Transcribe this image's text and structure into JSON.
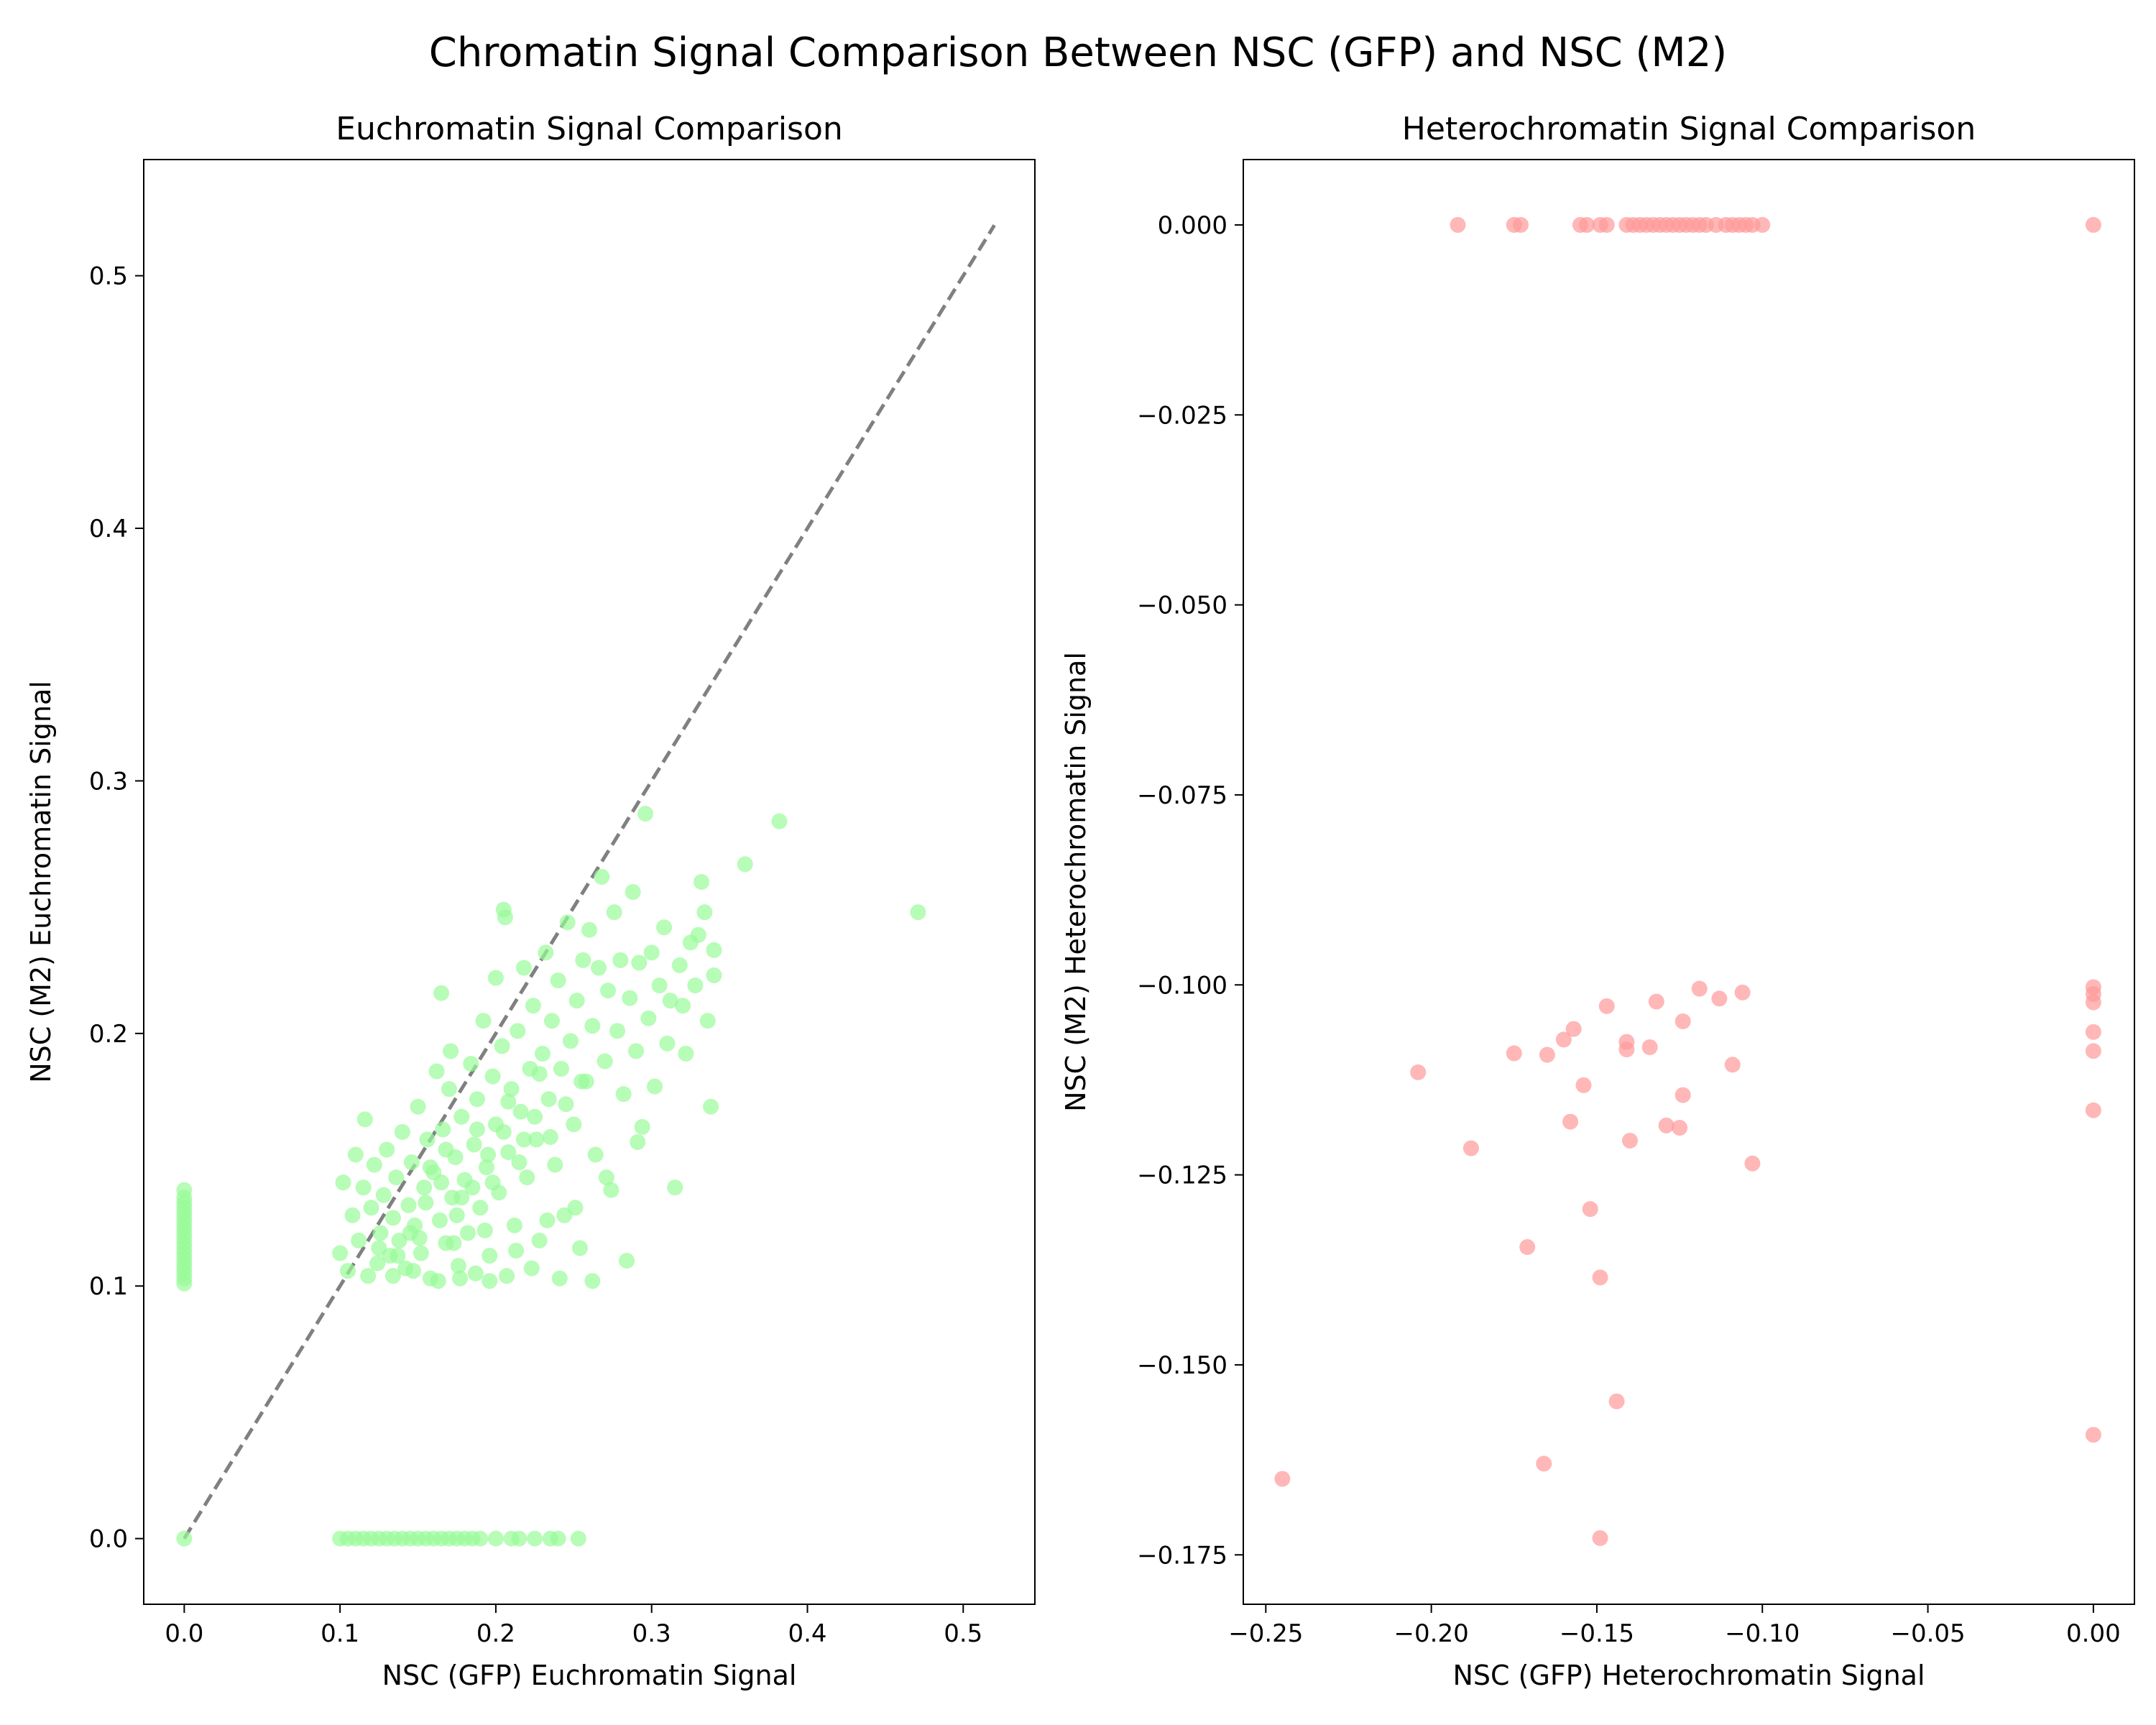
{
  "figure": {
    "suptitle": "Chromatin Signal Comparison Between NSC (GFP) and NSC (M2)"
  },
  "chart_data": [
    {
      "type": "scatter",
      "title": "Euchromatin Signal Comparison",
      "xlabel": "NSC (GFP) Euchromatin Signal",
      "ylabel": "NSC (M2) Euchromatin Signal",
      "xlim": [
        -0.026,
        0.546
      ],
      "ylim": [
        -0.026,
        0.546
      ],
      "xticks": [
        0.0,
        0.1,
        0.2,
        0.3,
        0.4,
        0.5
      ],
      "yticks": [
        0.0,
        0.1,
        0.2,
        0.3,
        0.4,
        0.5
      ],
      "xtick_labels": [
        "0.0",
        "0.1",
        "0.2",
        "0.3",
        "0.4",
        "0.5"
      ],
      "ytick_labels": [
        "0.0",
        "0.1",
        "0.2",
        "0.3",
        "0.4",
        "0.5"
      ],
      "color": "#98fb98",
      "alpha": 0.7,
      "grid": false,
      "reference_line": {
        "x": [
          0,
          0.52
        ],
        "y": [
          0,
          0.52
        ],
        "color": "#808080",
        "style": "dashed"
      },
      "points": [
        [
          0,
          0
        ],
        [
          0,
          0.101
        ],
        [
          0,
          0.103
        ],
        [
          0,
          0.105
        ],
        [
          0,
          0.107
        ],
        [
          0,
          0.109
        ],
        [
          0,
          0.111
        ],
        [
          0,
          0.113
        ],
        [
          0,
          0.115
        ],
        [
          0,
          0.117
        ],
        [
          0,
          0.119
        ],
        [
          0,
          0.121
        ],
        [
          0,
          0.123
        ],
        [
          0,
          0.125
        ],
        [
          0,
          0.127
        ],
        [
          0,
          0.129
        ],
        [
          0,
          0.131
        ],
        [
          0,
          0.133
        ],
        [
          0,
          0.135
        ],
        [
          0,
          0.138
        ],
        [
          0.1,
          0
        ],
        [
          0.105,
          0
        ],
        [
          0.11,
          0
        ],
        [
          0.115,
          0
        ],
        [
          0.12,
          0
        ],
        [
          0.125,
          0
        ],
        [
          0.13,
          0
        ],
        [
          0.135,
          0
        ],
        [
          0.14,
          0
        ],
        [
          0.145,
          0
        ],
        [
          0.15,
          0
        ],
        [
          0.155,
          0
        ],
        [
          0.16,
          0
        ],
        [
          0.165,
          0
        ],
        [
          0.17,
          0
        ],
        [
          0.175,
          0
        ],
        [
          0.18,
          0
        ],
        [
          0.185,
          0
        ],
        [
          0.19,
          0
        ],
        [
          0.2,
          0
        ],
        [
          0.21,
          0
        ],
        [
          0.215,
          0
        ],
        [
          0.225,
          0
        ],
        [
          0.235,
          0
        ],
        [
          0.24,
          0
        ],
        [
          0.253,
          0
        ],
        [
          0.1,
          0.113
        ],
        [
          0.102,
          0.141
        ],
        [
          0.105,
          0.106
        ],
        [
          0.108,
          0.128
        ],
        [
          0.11,
          0.152
        ],
        [
          0.112,
          0.118
        ],
        [
          0.115,
          0.139
        ],
        [
          0.116,
          0.166
        ],
        [
          0.118,
          0.104
        ],
        [
          0.12,
          0.131
        ],
        [
          0.122,
          0.148
        ],
        [
          0.124,
          0.109
        ],
        [
          0.126,
          0.121
        ],
        [
          0.128,
          0.136
        ],
        [
          0.13,
          0.154
        ],
        [
          0.132,
          0.112
        ],
        [
          0.134,
          0.127
        ],
        [
          0.136,
          0.143
        ],
        [
          0.138,
          0.118
        ],
        [
          0.14,
          0.161
        ],
        [
          0.142,
          0.107
        ],
        [
          0.144,
          0.132
        ],
        [
          0.146,
          0.149
        ],
        [
          0.148,
          0.124
        ],
        [
          0.15,
          0.171
        ],
        [
          0.152,
          0.113
        ],
        [
          0.154,
          0.139
        ],
        [
          0.156,
          0.158
        ],
        [
          0.158,
          0.103
        ],
        [
          0.16,
          0.145
        ],
        [
          0.162,
          0.185
        ],
        [
          0.164,
          0.126
        ],
        [
          0.165,
          0.216
        ],
        [
          0.166,
          0.162
        ],
        [
          0.168,
          0.117
        ],
        [
          0.17,
          0.178
        ],
        [
          0.171,
          0.193
        ],
        [
          0.172,
          0.135
        ],
        [
          0.174,
          0.151
        ],
        [
          0.176,
          0.108
        ],
        [
          0.178,
          0.167
        ],
        [
          0.18,
          0.142
        ],
        [
          0.182,
          0.121
        ],
        [
          0.184,
          0.188
        ],
        [
          0.186,
          0.156
        ],
        [
          0.188,
          0.174
        ],
        [
          0.19,
          0.131
        ],
        [
          0.192,
          0.205
        ],
        [
          0.194,
          0.147
        ],
        [
          0.196,
          0.112
        ],
        [
          0.198,
          0.183
        ],
        [
          0.2,
          0.164
        ],
        [
          0.2,
          0.222
        ],
        [
          0.202,
          0.137
        ],
        [
          0.204,
          0.195
        ],
        [
          0.205,
          0.249
        ],
        [
          0.206,
          0.246
        ],
        [
          0.208,
          0.153
        ],
        [
          0.21,
          0.178
        ],
        [
          0.212,
          0.124
        ],
        [
          0.214,
          0.201
        ],
        [
          0.216,
          0.169
        ],
        [
          0.218,
          0.226
        ],
        [
          0.22,
          0.143
        ],
        [
          0.222,
          0.186
        ],
        [
          0.224,
          0.211
        ],
        [
          0.226,
          0.158
        ],
        [
          0.228,
          0.118
        ],
        [
          0.23,
          0.192
        ],
        [
          0.232,
          0.232
        ],
        [
          0.234,
          0.174
        ],
        [
          0.236,
          0.205
        ],
        [
          0.238,
          0.148
        ],
        [
          0.24,
          0.221
        ],
        [
          0.242,
          0.186
        ],
        [
          0.244,
          0.128
        ],
        [
          0.246,
          0.244
        ],
        [
          0.248,
          0.197
        ],
        [
          0.25,
          0.164
        ],
        [
          0.252,
          0.213
        ],
        [
          0.254,
          0.115
        ],
        [
          0.256,
          0.229
        ],
        [
          0.258,
          0.181
        ],
        [
          0.26,
          0.241
        ],
        [
          0.262,
          0.203
        ],
        [
          0.264,
          0.152
        ],
        [
          0.266,
          0.226
        ],
        [
          0.268,
          0.262
        ],
        [
          0.27,
          0.189
        ],
        [
          0.272,
          0.217
        ],
        [
          0.274,
          0.138
        ],
        [
          0.276,
          0.248
        ],
        [
          0.278,
          0.201
        ],
        [
          0.28,
          0.229
        ],
        [
          0.282,
          0.176
        ],
        [
          0.284,
          0.11
        ],
        [
          0.286,
          0.214
        ],
        [
          0.288,
          0.256
        ],
        [
          0.29,
          0.193
        ],
        [
          0.292,
          0.228
        ],
        [
          0.294,
          0.163
        ],
        [
          0.296,
          0.287
        ],
        [
          0.298,
          0.206
        ],
        [
          0.3,
          0.232
        ],
        [
          0.302,
          0.179
        ],
        [
          0.305,
          0.219
        ],
        [
          0.308,
          0.242
        ],
        [
          0.31,
          0.196
        ],
        [
          0.312,
          0.213
        ],
        [
          0.315,
          0.139
        ],
        [
          0.318,
          0.227
        ],
        [
          0.32,
          0.211
        ],
        [
          0.322,
          0.192
        ],
        [
          0.325,
          0.236
        ],
        [
          0.328,
          0.219
        ],
        [
          0.33,
          0.239
        ],
        [
          0.332,
          0.26
        ],
        [
          0.334,
          0.248
        ],
        [
          0.336,
          0.205
        ],
        [
          0.338,
          0.171
        ],
        [
          0.34,
          0.223
        ],
        [
          0.34,
          0.233
        ],
        [
          0.36,
          0.267
        ],
        [
          0.382,
          0.284
        ],
        [
          0.471,
          0.248
        ],
        [
          0.145,
          0.121
        ],
        [
          0.155,
          0.133
        ],
        [
          0.165,
          0.141
        ],
        [
          0.175,
          0.128
        ],
        [
          0.185,
          0.139
        ],
        [
          0.195,
          0.152
        ],
        [
          0.205,
          0.161
        ],
        [
          0.215,
          0.149
        ],
        [
          0.225,
          0.167
        ],
        [
          0.235,
          0.159
        ],
        [
          0.245,
          0.172
        ],
        [
          0.255,
          0.181
        ],
        [
          0.158,
          0.147
        ],
        [
          0.168,
          0.154
        ],
        [
          0.178,
          0.135
        ],
        [
          0.188,
          0.162
        ],
        [
          0.198,
          0.141
        ],
        [
          0.208,
          0.173
        ],
        [
          0.218,
          0.158
        ],
        [
          0.228,
          0.184
        ],
        [
          0.134,
          0.104
        ],
        [
          0.147,
          0.106
        ],
        [
          0.163,
          0.102
        ],
        [
          0.177,
          0.103
        ],
        [
          0.187,
          0.105
        ],
        [
          0.196,
          0.102
        ],
        [
          0.207,
          0.104
        ],
        [
          0.223,
          0.107
        ],
        [
          0.241,
          0.103
        ],
        [
          0.262,
          0.102
        ],
        [
          0.125,
          0.115
        ],
        [
          0.137,
          0.112
        ],
        [
          0.151,
          0.119
        ],
        [
          0.173,
          0.117
        ],
        [
          0.193,
          0.122
        ],
        [
          0.213,
          0.114
        ],
        [
          0.233,
          0.126
        ],
        [
          0.251,
          0.131
        ],
        [
          0.271,
          0.143
        ],
        [
          0.291,
          0.157
        ]
      ]
    },
    {
      "type": "scatter",
      "title": "Heterochromatin Signal Comparison",
      "xlabel": "NSC (GFP) Heterochromatin Signal",
      "ylabel": "NSC (M2) Heterochromatin Signal",
      "xlim": [
        -0.2568,
        0.0124
      ],
      "ylim": [
        -0.1815,
        0.0086
      ],
      "xticks": [
        -0.25,
        -0.2,
        -0.15,
        -0.1,
        -0.05,
        0.0
      ],
      "yticks": [
        0.0,
        -0.025,
        -0.05,
        -0.075,
        -0.1,
        -0.125,
        -0.15,
        -0.175
      ],
      "xtick_labels": [
        "−0.25",
        "−0.20",
        "−0.15",
        "−0.10",
        "−0.05",
        "0.00"
      ],
      "ytick_labels": [
        "0.000",
        "−0.025",
        "−0.050",
        "−0.075",
        "−0.100",
        "−0.125",
        "−0.150",
        "−0.175"
      ],
      "color": "#ff9999",
      "alpha": 0.7,
      "grid": false,
      "points": [
        [
          -0.192,
          0
        ],
        [
          -0.175,
          0
        ],
        [
          -0.173,
          0
        ],
        [
          -0.155,
          0
        ],
        [
          -0.153,
          0
        ],
        [
          -0.149,
          0
        ],
        [
          -0.147,
          0
        ],
        [
          -0.141,
          0
        ],
        [
          -0.139,
          0
        ],
        [
          -0.137,
          0
        ],
        [
          -0.135,
          0
        ],
        [
          -0.133,
          0
        ],
        [
          -0.131,
          0
        ],
        [
          -0.129,
          0
        ],
        [
          -0.127,
          0
        ],
        [
          -0.125,
          0
        ],
        [
          -0.123,
          0
        ],
        [
          -0.121,
          0
        ],
        [
          -0.119,
          0
        ],
        [
          -0.117,
          0
        ],
        [
          -0.114,
          0
        ],
        [
          -0.111,
          0
        ],
        [
          -0.109,
          0
        ],
        [
          -0.107,
          0
        ],
        [
          -0.105,
          0
        ],
        [
          -0.103,
          0
        ],
        [
          -0.1,
          0
        ],
        [
          0,
          0
        ],
        [
          -0.245,
          -0.165
        ],
        [
          -0.204,
          -0.1115
        ],
        [
          -0.188,
          -0.1215
        ],
        [
          -0.175,
          -0.109
        ],
        [
          -0.171,
          -0.1345
        ],
        [
          -0.166,
          -0.163
        ],
        [
          -0.165,
          -0.1092
        ],
        [
          -0.16,
          -0.1072
        ],
        [
          -0.158,
          -0.118
        ],
        [
          -0.157,
          -0.1058
        ],
        [
          -0.154,
          -0.1132
        ],
        [
          -0.152,
          -0.1295
        ],
        [
          -0.149,
          -0.1385
        ],
        [
          -0.149,
          -0.1728
        ],
        [
          -0.147,
          -0.1028
        ],
        [
          -0.144,
          -0.1548
        ],
        [
          -0.141,
          -0.1075
        ],
        [
          -0.141,
          -0.1085
        ],
        [
          -0.14,
          -0.1205
        ],
        [
          -0.134,
          -0.1082
        ],
        [
          -0.132,
          -0.1022
        ],
        [
          -0.129,
          -0.1185
        ],
        [
          -0.125,
          -0.1188
        ],
        [
          -0.124,
          -0.1048
        ],
        [
          -0.124,
          -0.1145
        ],
        [
          -0.119,
          -0.1005
        ],
        [
          -0.113,
          -0.1018
        ],
        [
          -0.109,
          -0.1105
        ],
        [
          -0.106,
          -0.101
        ],
        [
          -0.103,
          -0.1235
        ],
        [
          0,
          -0.1003
        ],
        [
          0,
          -0.1012
        ],
        [
          0,
          -0.1023
        ],
        [
          0,
          -0.1062
        ],
        [
          0,
          -0.1087
        ],
        [
          0,
          -0.1165
        ],
        [
          0,
          -0.1592
        ]
      ]
    }
  ]
}
